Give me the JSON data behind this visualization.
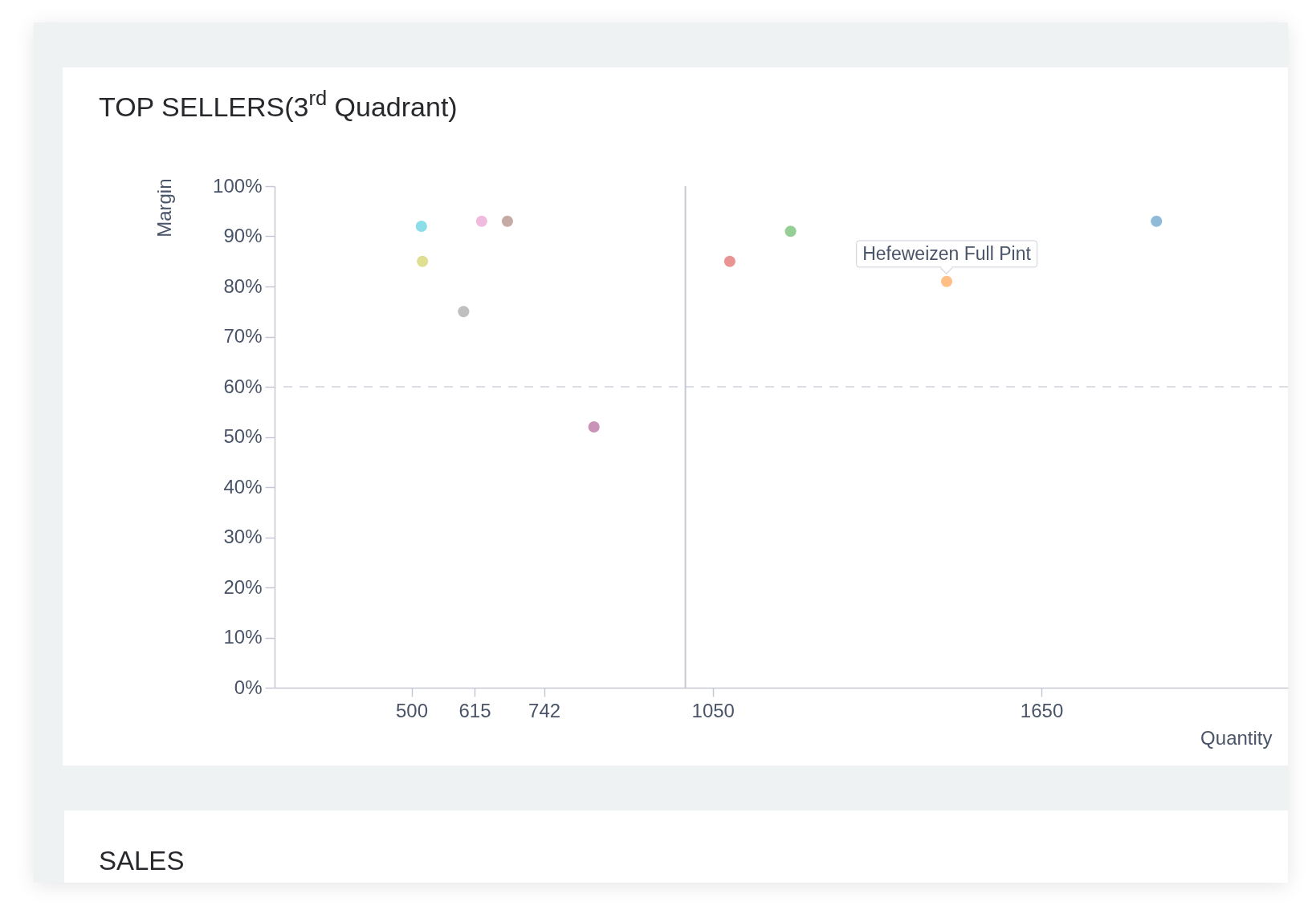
{
  "chart_data": {
    "type": "scatter",
    "title": "TOP SELLERS(3$^{rd}$ Quadrant)",
    "xlabel": "Quantity",
    "ylabel": "Margin",
    "x": [
      518,
      520,
      595,
      628,
      675,
      833,
      1081,
      1192,
      1477,
      1860
    ],
    "values": [
      92,
      85,
      75,
      93,
      93,
      52,
      85,
      91,
      81,
      93
    ],
    "colors": [
      "#8bdee7",
      "#dedf93",
      "#bfbfbf",
      "#f1bbe0",
      "#c5aaa5",
      "#c993b8",
      "#ea9393",
      "#95cf95",
      "#ffbf86",
      "#8fbbd9"
    ],
    "marker": "circle",
    "xlim": [
      250,
      2100
    ],
    "xticks": [
      500,
      615,
      742,
      1050,
      1650
    ],
    "ylim": [
      0,
      100
    ],
    "yticks": [
      {
        "value": 0,
        "label": "0%"
      },
      {
        "value": 10,
        "label": "10%"
      },
      {
        "value": 20,
        "label": "20%"
      },
      {
        "value": 30,
        "label": "30%"
      },
      {
        "value": 40,
        "label": "40%"
      },
      {
        "value": 50,
        "label": "50%"
      },
      {
        "value": 60,
        "label": "60%"
      },
      {
        "value": 70,
        "label": "70%"
      },
      {
        "value": 80,
        "label": "80%"
      },
      {
        "value": 90,
        "label": "90%"
      },
      {
        "value": 100,
        "label": "100%"
      }
    ],
    "ref_lines": [
      {
        "axis": "y",
        "value": 60,
        "line_style": "dashed",
        "color": "#dcdde5"
      },
      {
        "axis": "x",
        "value": 1000,
        "line_style": "solid",
        "color": "#c7cad6"
      }
    ],
    "annotations": [
      {
        "text": "Hefeweizen Full Pint",
        "x": 1477,
        "y": 81
      },
      "SALES"
    ]
  }
}
